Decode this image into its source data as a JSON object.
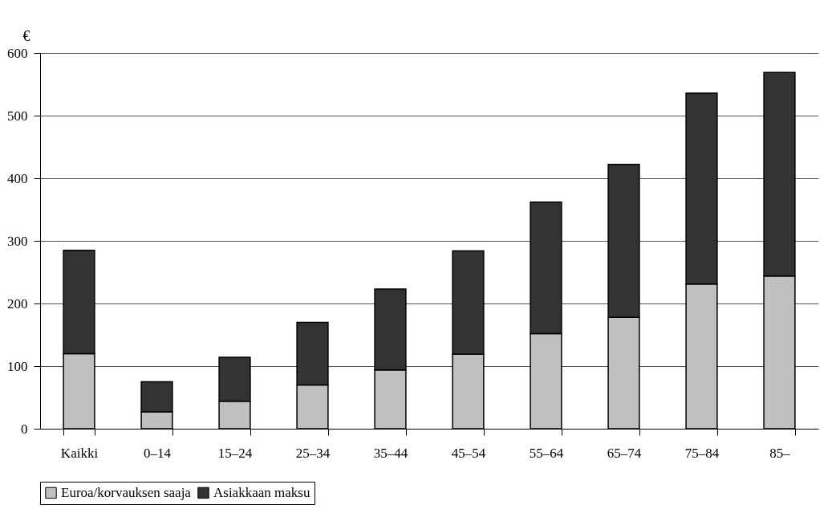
{
  "chart_data": {
    "type": "bar",
    "ylabel": "€",
    "stacked": true,
    "categories": [
      "Kaikki",
      "0–14",
      "15–24",
      "25–34",
      "35–44",
      "45–54",
      "55–64",
      "65–74",
      "75–84",
      "85–"
    ],
    "series": [
      {
        "name": "Euroa/korvauksen saaja",
        "color": "#c0c0c0",
        "values": [
          120,
          27,
          44,
          70,
          94,
          119,
          152,
          178,
          231,
          244
        ]
      },
      {
        "name": "Asiakkaan maksu",
        "color": "#333333",
        "values": [
          165,
          48,
          70,
          100,
          129,
          165,
          210,
          244,
          305,
          325
        ]
      }
    ],
    "ylim": [
      0,
      600
    ],
    "yticks": [
      0,
      100,
      200,
      300,
      400,
      500,
      600
    ],
    "grid": "y",
    "legend": "bottom"
  }
}
